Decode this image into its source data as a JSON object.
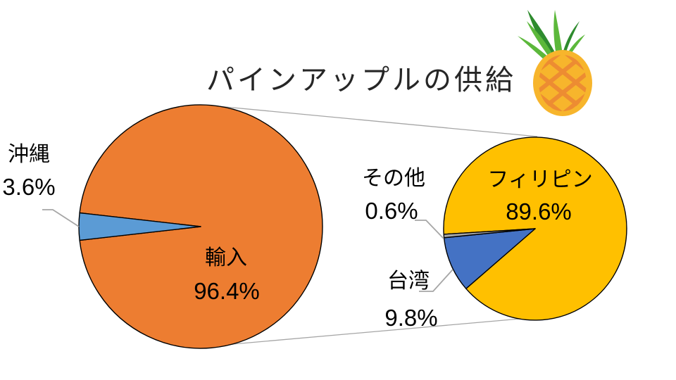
{
  "chart_data": {
    "type": "pie",
    "variant": "pie-of-pie",
    "title": "パインアップルの供給",
    "legend": "none",
    "main_pie": {
      "slices": [
        {
          "label": "輸入",
          "value": 96.4,
          "display": "96.4%",
          "color": "#ED7D31",
          "label_position": "inside"
        },
        {
          "label": "沖縄",
          "value": 3.6,
          "display": "3.6%",
          "color": "#5B9BD5",
          "label_position": "outside"
        }
      ]
    },
    "secondary_pie": {
      "slices": [
        {
          "label": "フィリピン",
          "value": 89.6,
          "display": "89.6%",
          "color": "#FFC000",
          "label_position": "inside"
        },
        {
          "label": "台湾",
          "value": 9.8,
          "display": "9.8%",
          "color": "#4472C4",
          "label_position": "outside"
        },
        {
          "label": "その他",
          "value": 0.6,
          "display": "0.6%",
          "color": "#A6A6A6",
          "label_position": "outside"
        }
      ]
    },
    "line_color": "#A6A6A6",
    "slice_border_color": "#000000",
    "icon": "pineapple-illustration"
  }
}
